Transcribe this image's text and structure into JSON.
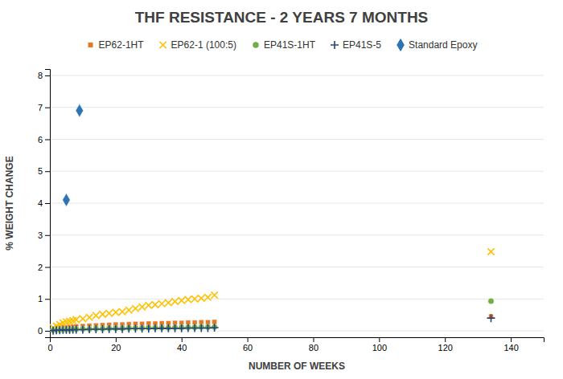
{
  "chart_data": {
    "type": "scatter",
    "title": "THF RESISTANCE - 2 YEARS 7 MONTHS",
    "xlabel": "NUMBER OF WEEKS",
    "ylabel": "% WEIGHT CHANGE",
    "xlim": [
      0,
      150
    ],
    "ylim": [
      -0.2,
      8.2
    ],
    "xticks": [
      0,
      20,
      40,
      60,
      80,
      100,
      120,
      140
    ],
    "yticks": [
      0,
      1,
      2,
      3,
      4,
      5,
      6,
      7,
      8
    ],
    "grid": true,
    "legend": "top",
    "series": [
      {
        "name": "EP62-1HT",
        "color": "#E87722",
        "marker": "square",
        "x": [
          1,
          2,
          3,
          4,
          5,
          6,
          7,
          8,
          10,
          12,
          14,
          16,
          18,
          20,
          22,
          24,
          26,
          28,
          30,
          32,
          34,
          36,
          38,
          40,
          42,
          44,
          46,
          48,
          50,
          134
        ],
        "values": [
          0.05,
          0.08,
          0.1,
          0.12,
          0.1,
          0.12,
          0.13,
          0.14,
          0.15,
          0.16,
          0.17,
          0.18,
          0.19,
          0.2,
          0.2,
          0.21,
          0.22,
          0.22,
          0.23,
          0.23,
          0.24,
          0.24,
          0.25,
          0.25,
          0.26,
          0.26,
          0.27,
          0.27,
          0.28,
          0.45
        ]
      },
      {
        "name": "EP62-1 (100:5)",
        "color": "#FFC000",
        "marker": "x",
        "x": [
          1,
          2,
          3,
          4,
          5,
          6,
          7,
          8,
          10,
          12,
          14,
          16,
          18,
          20,
          22,
          24,
          26,
          28,
          30,
          32,
          34,
          36,
          38,
          40,
          42,
          44,
          46,
          48,
          50,
          134
        ],
        "values": [
          0.1,
          0.15,
          0.2,
          0.25,
          0.28,
          0.3,
          0.32,
          0.35,
          0.38,
          0.42,
          0.48,
          0.52,
          0.55,
          0.58,
          0.6,
          0.65,
          0.7,
          0.75,
          0.8,
          0.82,
          0.85,
          0.88,
          0.92,
          0.95,
          0.98,
          1.0,
          1.02,
          1.05,
          1.12,
          2.48
        ]
      },
      {
        "name": "EP41S-1HT",
        "color": "#70AD47",
        "marker": "circle",
        "x": [
          1,
          2,
          3,
          4,
          5,
          6,
          7,
          8,
          10,
          12,
          14,
          16,
          18,
          20,
          22,
          24,
          26,
          28,
          30,
          32,
          34,
          36,
          38,
          40,
          42,
          44,
          46,
          48,
          50,
          134
        ],
        "values": [
          0.02,
          0.03,
          0.03,
          0.04,
          0.04,
          0.04,
          0.05,
          0.05,
          0.06,
          0.06,
          0.07,
          0.07,
          0.08,
          0.08,
          0.08,
          0.09,
          0.09,
          0.09,
          0.1,
          0.1,
          0.1,
          0.1,
          0.11,
          0.11,
          0.11,
          0.11,
          0.12,
          0.12,
          0.12,
          0.93
        ]
      },
      {
        "name": "EP41S-5",
        "color": "#264478",
        "marker": "plus",
        "x": [
          1,
          2,
          3,
          4,
          5,
          6,
          7,
          8,
          10,
          12,
          14,
          16,
          18,
          20,
          22,
          24,
          26,
          28,
          30,
          32,
          34,
          36,
          38,
          40,
          42,
          44,
          46,
          48,
          50,
          134
        ],
        "values": [
          0.01,
          0.02,
          0.02,
          0.03,
          0.03,
          0.03,
          0.04,
          0.04,
          0.04,
          0.05,
          0.05,
          0.05,
          0.06,
          0.06,
          0.06,
          0.07,
          0.07,
          0.07,
          0.07,
          0.08,
          0.08,
          0.08,
          0.08,
          0.08,
          0.09,
          0.09,
          0.09,
          0.09,
          0.1,
          0.4
        ]
      },
      {
        "name": "Standard Epoxy",
        "color": "#2E75B6",
        "marker": "diamond",
        "x": [
          5,
          9
        ],
        "values": [
          4.1,
          6.9
        ]
      }
    ]
  }
}
